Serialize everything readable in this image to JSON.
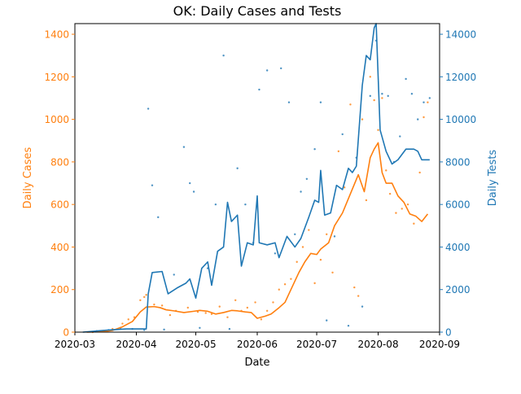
{
  "chart_data": {
    "type": "line",
    "title": "OK: Daily Cases and Tests",
    "xlabel": "Date",
    "ylabel_left": "Daily Cases",
    "ylabel_right": "Daily Tests",
    "x_range": [
      "2020-03-01",
      "2020-09-01"
    ],
    "ylim_left": [
      0,
      1450
    ],
    "ylim_right": [
      0,
      14500
    ],
    "x_ticks": [
      "2020-03",
      "2020-04",
      "2020-05",
      "2020-06",
      "2020-07",
      "2020-08",
      "2020-09"
    ],
    "x_tick_dates": [
      "2020-03-01",
      "2020-04-01",
      "2020-05-01",
      "2020-06-01",
      "2020-07-01",
      "2020-08-01",
      "2020-09-01"
    ],
    "y_ticks_left": [
      0,
      200,
      400,
      600,
      800,
      1000,
      1200,
      1400
    ],
    "y_ticks_right": [
      0,
      2000,
      4000,
      6000,
      8000,
      10000,
      12000,
      14000
    ],
    "grid": false,
    "colors": {
      "cases": "#ff7f0e",
      "tests": "#1f77b4",
      "text": "#000000"
    },
    "series": [
      {
        "key": "cases_avg",
        "axis": "left",
        "style": "line",
        "points": [
          [
            "2020-03-07",
            0
          ],
          [
            "2020-03-15",
            2
          ],
          [
            "2020-03-20",
            8
          ],
          [
            "2020-03-25",
            25
          ],
          [
            "2020-03-30",
            50
          ],
          [
            "2020-04-03",
            95
          ],
          [
            "2020-04-06",
            118
          ],
          [
            "2020-04-10",
            120
          ],
          [
            "2020-04-13",
            115
          ],
          [
            "2020-04-16",
            105
          ],
          [
            "2020-04-20",
            100
          ],
          [
            "2020-04-25",
            92
          ],
          [
            "2020-04-30",
            98
          ],
          [
            "2020-05-03",
            102
          ],
          [
            "2020-05-07",
            98
          ],
          [
            "2020-05-11",
            85
          ],
          [
            "2020-05-15",
            92
          ],
          [
            "2020-05-19",
            102
          ],
          [
            "2020-05-22",
            100
          ],
          [
            "2020-05-26",
            95
          ],
          [
            "2020-05-29",
            92
          ],
          [
            "2020-06-01",
            65
          ],
          [
            "2020-06-05",
            75
          ],
          [
            "2020-06-08",
            85
          ],
          [
            "2020-06-12",
            115
          ],
          [
            "2020-06-15",
            140
          ],
          [
            "2020-06-18",
            200
          ],
          [
            "2020-06-22",
            280
          ],
          [
            "2020-06-25",
            330
          ],
          [
            "2020-06-28",
            370
          ],
          [
            "2020-07-01",
            365
          ],
          [
            "2020-07-03",
            390
          ],
          [
            "2020-07-07",
            420
          ],
          [
            "2020-07-10",
            500
          ],
          [
            "2020-07-14",
            560
          ],
          [
            "2020-07-18",
            650
          ],
          [
            "2020-07-22",
            740
          ],
          [
            "2020-07-25",
            660
          ],
          [
            "2020-07-28",
            820
          ],
          [
            "2020-07-30",
            860
          ],
          [
            "2020-08-01",
            890
          ],
          [
            "2020-08-03",
            750
          ],
          [
            "2020-08-05",
            700
          ],
          [
            "2020-08-08",
            700
          ],
          [
            "2020-08-11",
            640
          ],
          [
            "2020-08-14",
            610
          ],
          [
            "2020-08-17",
            555
          ],
          [
            "2020-08-20",
            545
          ],
          [
            "2020-08-23",
            520
          ],
          [
            "2020-08-26",
            555
          ]
        ]
      },
      {
        "key": "tests_avg",
        "axis": "right",
        "style": "line",
        "points": [
          [
            "2020-03-05",
            0
          ],
          [
            "2020-03-18",
            100
          ],
          [
            "2020-03-27",
            150
          ],
          [
            "2020-04-06",
            150
          ],
          [
            "2020-04-07",
            1800
          ],
          [
            "2020-04-09",
            2800
          ],
          [
            "2020-04-14",
            2850
          ],
          [
            "2020-04-17",
            1800
          ],
          [
            "2020-04-22",
            2100
          ],
          [
            "2020-04-26",
            2300
          ],
          [
            "2020-04-28",
            2500
          ],
          [
            "2020-05-01",
            1600
          ],
          [
            "2020-05-04",
            3000
          ],
          [
            "2020-05-07",
            3300
          ],
          [
            "2020-05-09",
            2200
          ],
          [
            "2020-05-12",
            3800
          ],
          [
            "2020-05-15",
            4000
          ],
          [
            "2020-05-17",
            6100
          ],
          [
            "2020-05-19",
            5200
          ],
          [
            "2020-05-22",
            5500
          ],
          [
            "2020-05-24",
            3100
          ],
          [
            "2020-05-27",
            4200
          ],
          [
            "2020-05-30",
            4100
          ],
          [
            "2020-06-01",
            6400
          ],
          [
            "2020-06-02",
            4200
          ],
          [
            "2020-06-06",
            4100
          ],
          [
            "2020-06-10",
            4200
          ],
          [
            "2020-06-12",
            3500
          ],
          [
            "2020-06-16",
            4500
          ],
          [
            "2020-06-20",
            4000
          ],
          [
            "2020-06-23",
            4400
          ],
          [
            "2020-06-27",
            5400
          ],
          [
            "2020-06-30",
            6200
          ],
          [
            "2020-07-02",
            6100
          ],
          [
            "2020-07-03",
            7600
          ],
          [
            "2020-07-05",
            5500
          ],
          [
            "2020-07-08",
            5600
          ],
          [
            "2020-07-11",
            6900
          ],
          [
            "2020-07-14",
            6700
          ],
          [
            "2020-07-17",
            7700
          ],
          [
            "2020-07-19",
            7500
          ],
          [
            "2020-07-21",
            7800
          ],
          [
            "2020-07-24",
            11600
          ],
          [
            "2020-07-26",
            13000
          ],
          [
            "2020-07-28",
            12800
          ],
          [
            "2020-07-30",
            14300
          ],
          [
            "2020-07-31",
            14500
          ],
          [
            "2020-08-02",
            9500
          ],
          [
            "2020-08-05",
            8500
          ],
          [
            "2020-08-08",
            7900
          ],
          [
            "2020-08-11",
            8100
          ],
          [
            "2020-08-15",
            8600
          ],
          [
            "2020-08-19",
            8600
          ],
          [
            "2020-08-21",
            8500
          ],
          [
            "2020-08-23",
            8100
          ],
          [
            "2020-08-27",
            8100
          ]
        ]
      },
      {
        "key": "cases_daily",
        "axis": "left",
        "style": "scatter",
        "points": [
          [
            "2020-03-10",
            0
          ],
          [
            "2020-03-15",
            5
          ],
          [
            "2020-03-20",
            15
          ],
          [
            "2020-03-25",
            40
          ],
          [
            "2020-03-28",
            60
          ],
          [
            "2020-03-31",
            70
          ],
          [
            "2020-04-03",
            150
          ],
          [
            "2020-04-05",
            165
          ],
          [
            "2020-04-06",
            175
          ],
          [
            "2020-04-10",
            130
          ],
          [
            "2020-04-14",
            125
          ],
          [
            "2020-04-18",
            80
          ],
          [
            "2020-04-21",
            100
          ],
          [
            "2020-04-27",
            115
          ],
          [
            "2020-05-02",
            95
          ],
          [
            "2020-05-06",
            90
          ],
          [
            "2020-05-09",
            85
          ],
          [
            "2020-05-13",
            120
          ],
          [
            "2020-05-17",
            70
          ],
          [
            "2020-05-21",
            150
          ],
          [
            "2020-05-24",
            100
          ],
          [
            "2020-05-27",
            115
          ],
          [
            "2020-05-31",
            140
          ],
          [
            "2020-06-03",
            60
          ],
          [
            "2020-06-06",
            100
          ],
          [
            "2020-06-09",
            140
          ],
          [
            "2020-06-12",
            200
          ],
          [
            "2020-06-15",
            225
          ],
          [
            "2020-06-18",
            250
          ],
          [
            "2020-06-21",
            330
          ],
          [
            "2020-06-24",
            400
          ],
          [
            "2020-06-27",
            480
          ],
          [
            "2020-06-30",
            230
          ],
          [
            "2020-07-03",
            340
          ],
          [
            "2020-07-06",
            460
          ],
          [
            "2020-07-09",
            280
          ],
          [
            "2020-07-12",
            850
          ],
          [
            "2020-07-15",
            680
          ],
          [
            "2020-07-18",
            1070
          ],
          [
            "2020-07-20",
            210
          ],
          [
            "2020-07-22",
            170
          ],
          [
            "2020-07-24",
            1000
          ],
          [
            "2020-07-26",
            620
          ],
          [
            "2020-07-28",
            1200
          ],
          [
            "2020-07-30",
            1090
          ],
          [
            "2020-08-01",
            950
          ],
          [
            "2020-08-03",
            1100
          ],
          [
            "2020-08-05",
            760
          ],
          [
            "2020-08-07",
            650
          ],
          [
            "2020-08-10",
            560
          ],
          [
            "2020-08-13",
            580
          ],
          [
            "2020-08-16",
            600
          ],
          [
            "2020-08-19",
            510
          ],
          [
            "2020-08-22",
            750
          ],
          [
            "2020-08-24",
            1010
          ],
          [
            "2020-08-26",
            1080
          ]
        ]
      },
      {
        "key": "tests_daily",
        "axis": "right",
        "style": "scatter",
        "points": [
          [
            "2020-03-12",
            50
          ],
          [
            "2020-03-18",
            100
          ],
          [
            "2020-03-24",
            200
          ],
          [
            "2020-03-30",
            150
          ],
          [
            "2020-04-05",
            100
          ],
          [
            "2020-04-07",
            10500
          ],
          [
            "2020-04-09",
            6900
          ],
          [
            "2020-04-12",
            5400
          ],
          [
            "2020-04-15",
            120
          ],
          [
            "2020-04-20",
            2700
          ],
          [
            "2020-04-25",
            8700
          ],
          [
            "2020-04-28",
            7000
          ],
          [
            "2020-04-30",
            6600
          ],
          [
            "2020-05-03",
            200
          ],
          [
            "2020-05-07",
            3000
          ],
          [
            "2020-05-11",
            6000
          ],
          [
            "2020-05-15",
            13000
          ],
          [
            "2020-05-18",
            150
          ],
          [
            "2020-05-22",
            7700
          ],
          [
            "2020-05-26",
            6000
          ],
          [
            "2020-05-30",
            4200
          ],
          [
            "2020-06-02",
            11400
          ],
          [
            "2020-06-06",
            12300
          ],
          [
            "2020-06-10",
            3700
          ],
          [
            "2020-06-13",
            12400
          ],
          [
            "2020-06-17",
            10800
          ],
          [
            "2020-06-20",
            4600
          ],
          [
            "2020-06-23",
            6600
          ],
          [
            "2020-06-26",
            7200
          ],
          [
            "2020-06-30",
            8600
          ],
          [
            "2020-07-03",
            10800
          ],
          [
            "2020-07-06",
            550
          ],
          [
            "2020-07-10",
            4500
          ],
          [
            "2020-07-14",
            9300
          ],
          [
            "2020-07-17",
            300
          ],
          [
            "2020-07-21",
            8200
          ],
          [
            "2020-07-24",
            1200
          ],
          [
            "2020-07-28",
            11100
          ],
          [
            "2020-07-31",
            13700
          ],
          [
            "2020-08-03",
            11200
          ],
          [
            "2020-08-06",
            11100
          ],
          [
            "2020-08-09",
            8000
          ],
          [
            "2020-08-12",
            9200
          ],
          [
            "2020-08-15",
            11900
          ],
          [
            "2020-08-18",
            11200
          ],
          [
            "2020-08-21",
            10000
          ],
          [
            "2020-08-24",
            10800
          ],
          [
            "2020-08-27",
            11000
          ]
        ]
      }
    ]
  }
}
